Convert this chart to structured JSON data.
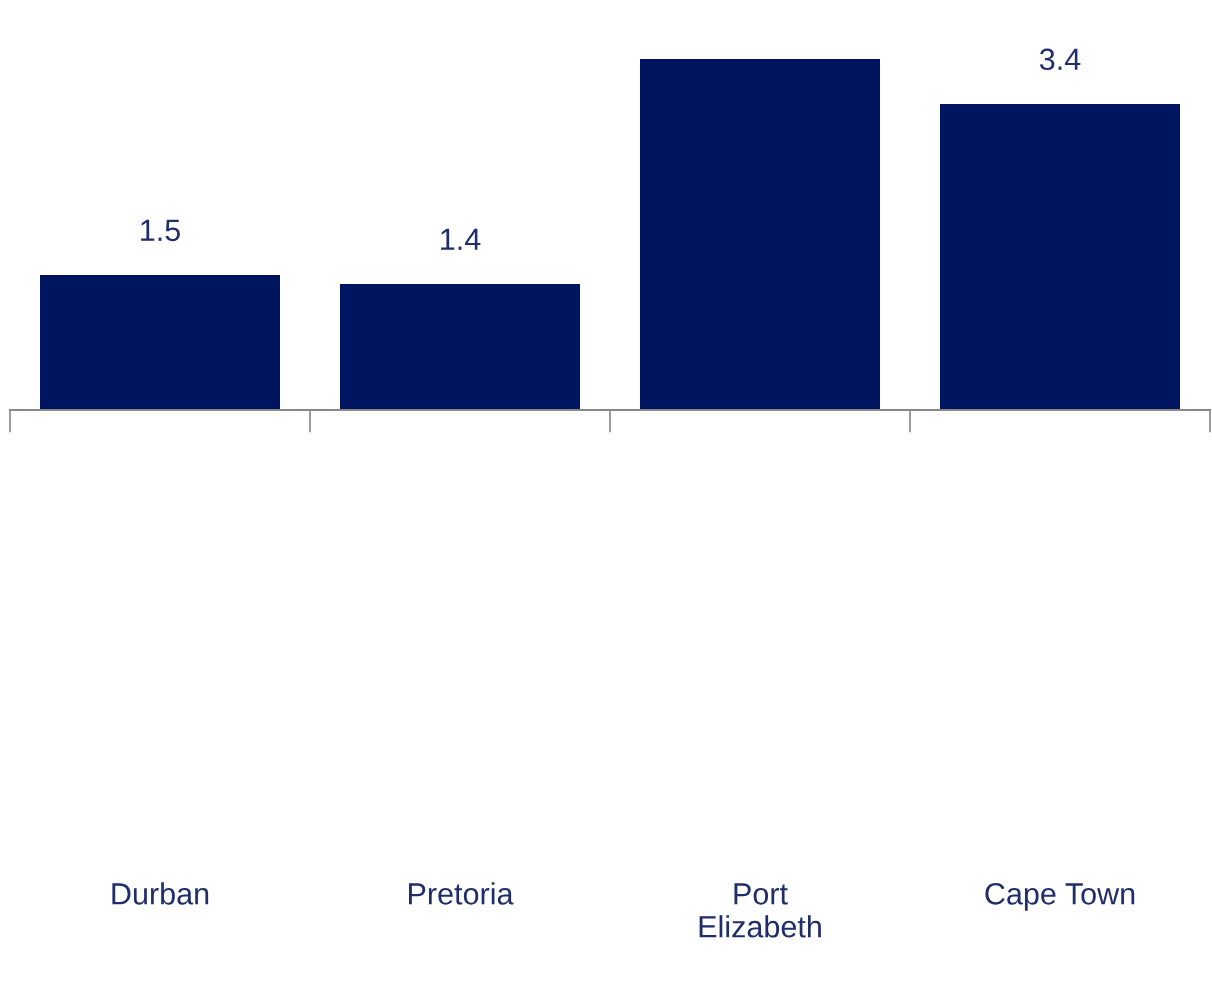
{
  "chart_data": {
    "type": "bar",
    "categories": [
      "Durban",
      "Pretoria",
      "Port Elizabeth",
      "Cape Town"
    ],
    "values": [
      1.5,
      1.4,
      3.9,
      3.4
    ],
    "value_labels": [
      "1.5",
      "1.4",
      null,
      "3.4"
    ],
    "color": "#001560",
    "grid": false,
    "legend": false
  }
}
